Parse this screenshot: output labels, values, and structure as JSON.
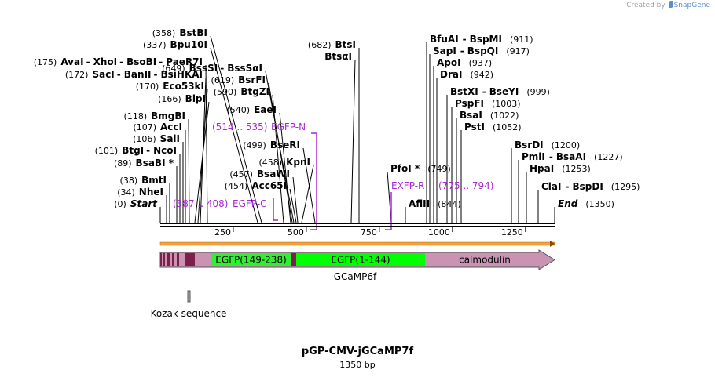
{
  "credit": {
    "prefix": "Created by",
    "brand": "SnapGene"
  },
  "plasmid": {
    "name": "pGP-CMV-jGCaMP7f",
    "length_label": "1350 bp",
    "length": 1350
  },
  "ruler": {
    "ticks": [
      {
        "pos": 250,
        "label": "250"
      },
      {
        "pos": 500,
        "label": "500"
      },
      {
        "pos": 750,
        "label": "750"
      },
      {
        "pos": 1000,
        "label": "1000"
      },
      {
        "pos": 1250,
        "label": "1250"
      }
    ]
  },
  "sites": [
    {
      "pos": 175,
      "labels": [
        "AvaI",
        "XhoI",
        "BsoBI",
        "PaeR7I"
      ],
      "coord": "(175)",
      "side": "left"
    },
    {
      "pos": 172,
      "labels": [
        "SacI",
        "BanII",
        "BsiHKAI"
      ],
      "coord": "(172)",
      "side": "left"
    },
    {
      "pos": 170,
      "labels": [
        "Eco53kI"
      ],
      "coord": "(170)",
      "side": "left"
    },
    {
      "pos": 166,
      "labels": [
        "BlpI"
      ],
      "coord": "(166)",
      "side": "left"
    },
    {
      "pos": 118,
      "labels": [
        "BmgBI"
      ],
      "coord": "(118)",
      "side": "left"
    },
    {
      "pos": 107,
      "labels": [
        "AccI"
      ],
      "coord": "(107)",
      "side": "left"
    },
    {
      "pos": 106,
      "labels": [
        "SalI"
      ],
      "coord": "(106)",
      "side": "left"
    },
    {
      "pos": 101,
      "labels": [
        "BtgI",
        "NcoI"
      ],
      "coord": "(101)",
      "side": "left"
    },
    {
      "pos": 89,
      "labels": [
        "BsaBI *"
      ],
      "coord": "(89)",
      "side": "left"
    },
    {
      "pos": 38,
      "labels": [
        "BmtI"
      ],
      "coord": "(38)",
      "side": "left"
    },
    {
      "pos": 34,
      "labels": [
        "NheI"
      ],
      "coord": "(34)",
      "side": "left"
    },
    {
      "pos": 0,
      "labels": [
        "Start"
      ],
      "coord": "(0)",
      "side": "left",
      "italic": true
    },
    {
      "pos": 358,
      "labels": [
        "BstBI"
      ],
      "coord": "(358)",
      "side": "left"
    },
    {
      "pos": 337,
      "labels": [
        "Bpu10I"
      ],
      "coord": "(337)",
      "side": "left"
    },
    {
      "pos": 649,
      "labels": [
        "BssSI",
        "BssSαI"
      ],
      "coord": "(649)",
      "side": "left"
    },
    {
      "pos": 619,
      "labels": [
        "BsrFI"
      ],
      "coord": "(619)",
      "side": "left"
    },
    {
      "pos": 590,
      "labels": [
        "BtgZI"
      ],
      "coord": "(590)",
      "side": "left"
    },
    {
      "pos": 540,
      "labels": [
        "EaeI"
      ],
      "coord": "(540)",
      "side": "left"
    },
    {
      "pos": 499,
      "labels": [
        "BseRI"
      ],
      "coord": "(499)",
      "side": "left"
    },
    {
      "pos": 458,
      "labels": [
        "KpnI"
      ],
      "coord": "(458)",
      "side": "left"
    },
    {
      "pos": 457,
      "labels": [
        "BsaWI"
      ],
      "coord": "(457)",
      "side": "left"
    },
    {
      "pos": 454,
      "labels": [
        "Acc65I"
      ],
      "coord": "(454)",
      "side": "left"
    },
    {
      "pos": 682,
      "labels": [
        "BtsI"
      ],
      "coord": "(682)",
      "side": "left"
    },
    {
      "pos": 682,
      "labels": [
        "BtsαI"
      ],
      "coord": "",
      "side": "left"
    },
    {
      "pos": 911,
      "labels": [
        "BfuAI",
        "BspMI"
      ],
      "coord": "(911)",
      "side": "right"
    },
    {
      "pos": 917,
      "labels": [
        "SapI",
        "BspQI"
      ],
      "coord": "(917)",
      "side": "right"
    },
    {
      "pos": 937,
      "labels": [
        "ApoI"
      ],
      "coord": "(937)",
      "side": "right"
    },
    {
      "pos": 942,
      "labels": [
        "DraI"
      ],
      "coord": "(942)",
      "side": "right"
    },
    {
      "pos": 999,
      "labels": [
        "BstXI",
        "BseYI"
      ],
      "coord": "(999)",
      "side": "right"
    },
    {
      "pos": 1003,
      "labels": [
        "PspFI"
      ],
      "coord": "(1003)",
      "side": "right"
    },
    {
      "pos": 1022,
      "labels": [
        "BsaI"
      ],
      "coord": "(1022)",
      "side": "right"
    },
    {
      "pos": 1052,
      "labels": [
        "PstI"
      ],
      "coord": "(1052)",
      "side": "right"
    },
    {
      "pos": 749,
      "labels": [
        "PfoI *"
      ],
      "coord": "(749)",
      "side": "right"
    },
    {
      "pos": 844,
      "labels": [
        "AflII"
      ],
      "coord": "(844)",
      "side": "right"
    },
    {
      "pos": 1200,
      "labels": [
        "BsrDI"
      ],
      "coord": "(1200)",
      "side": "right"
    },
    {
      "pos": 1227,
      "labels": [
        "PmlI",
        "BsaAI"
      ],
      "coord": "(1227)",
      "side": "right"
    },
    {
      "pos": 1253,
      "labels": [
        "HpaI"
      ],
      "coord": "(1253)",
      "side": "right"
    },
    {
      "pos": 1295,
      "labels": [
        "ClaI",
        "BspDI"
      ],
      "coord": "(1295)",
      "side": "right"
    },
    {
      "pos": 1350,
      "labels": [
        "End"
      ],
      "coord": "(1350)",
      "side": "right",
      "italic": true
    }
  ],
  "primers": [
    {
      "name": "EGFP-C",
      "range": "(387 .. 408)",
      "start": 387,
      "end": 408,
      "strand": "forward"
    },
    {
      "name": "EGFP-N",
      "range": "(514 .. 535)",
      "start": 514,
      "end": 535,
      "strand": "reverse"
    },
    {
      "name": "EXFP-R",
      "range": "(775 .. 794)",
      "start": 775,
      "end": 794,
      "strand": "reverse"
    }
  ],
  "features": [
    {
      "name": "EGFP(149-238)",
      "start": 179,
      "end": 467,
      "color": "#33ee33"
    },
    {
      "name": "EGFP(1-144)",
      "start": 467,
      "end": 917,
      "color": "#00ff00"
    },
    {
      "name": "calmodulin",
      "start": 917,
      "end": 1350,
      "color": "#c994b4"
    },
    {
      "name": "GCaMP6f",
      "start": 0,
      "end": 1350,
      "color": "#c994b4"
    },
    {
      "name": "Kozak sequence",
      "start": 95,
      "end": 105,
      "color": "#bbbbbb"
    }
  ],
  "colors": {
    "primer": "#a62ad1",
    "orf": "#f3a23b",
    "backbone": "#000000"
  }
}
